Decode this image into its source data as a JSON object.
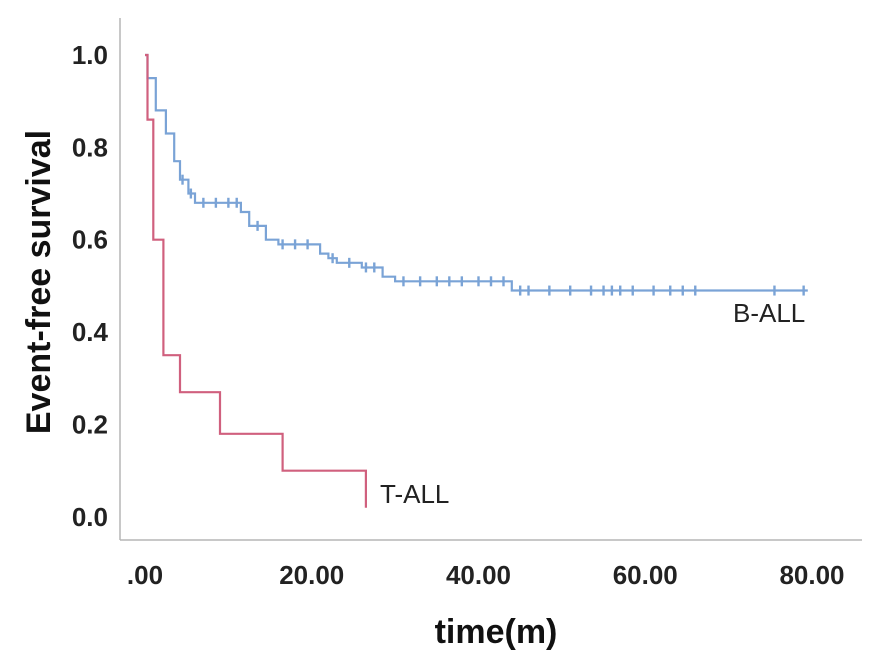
{
  "chart_data": {
    "type": "line",
    "title": "",
    "xlabel": "time(m)",
    "ylabel": "Event-free survival",
    "xlim": [
      -3,
      86
    ],
    "ylim": [
      -0.05,
      1.08
    ],
    "grid": false,
    "x_ticks": [
      {
        "value": 0,
        "label": ".00"
      },
      {
        "value": 20,
        "label": "20.00"
      },
      {
        "value": 40,
        "label": "40.00"
      },
      {
        "value": 60,
        "label": "60.00"
      },
      {
        "value": 80,
        "label": "80.00"
      }
    ],
    "y_ticks": [
      {
        "value": 0.0,
        "label": "0.0"
      },
      {
        "value": 0.2,
        "label": "0.2"
      },
      {
        "value": 0.4,
        "label": "0.4"
      },
      {
        "value": 0.6,
        "label": "0.6"
      },
      {
        "value": 0.8,
        "label": "0.8"
      },
      {
        "value": 1.0,
        "label": "1.0"
      }
    ],
    "series": [
      {
        "name": "B-ALL",
        "color": "#7aa3d6",
        "steps": [
          [
            0,
            1.0
          ],
          [
            0.3,
            0.95
          ],
          [
            1.3,
            0.88
          ],
          [
            2.5,
            0.83
          ],
          [
            3.5,
            0.77
          ],
          [
            4.2,
            0.73
          ],
          [
            5.2,
            0.7
          ],
          [
            6.0,
            0.68
          ],
          [
            11.5,
            0.66
          ],
          [
            12.5,
            0.63
          ],
          [
            14.5,
            0.6
          ],
          [
            16.0,
            0.59
          ],
          [
            21.0,
            0.57
          ],
          [
            22.0,
            0.56
          ],
          [
            23.0,
            0.55
          ],
          [
            26.0,
            0.54
          ],
          [
            28.5,
            0.52
          ],
          [
            30.0,
            0.51
          ],
          [
            44.0,
            0.49
          ],
          [
            79.5,
            0.49
          ]
        ],
        "censored": [
          [
            4.5,
            0.73
          ],
          [
            5.5,
            0.7
          ],
          [
            7.0,
            0.68
          ],
          [
            8.5,
            0.68
          ],
          [
            10.0,
            0.68
          ],
          [
            11.0,
            0.68
          ],
          [
            13.5,
            0.63
          ],
          [
            16.5,
            0.59
          ],
          [
            18.0,
            0.59
          ],
          [
            19.5,
            0.59
          ],
          [
            22.5,
            0.56
          ],
          [
            24.5,
            0.55
          ],
          [
            26.5,
            0.54
          ],
          [
            27.5,
            0.54
          ],
          [
            31.0,
            0.51
          ],
          [
            33.0,
            0.51
          ],
          [
            35.0,
            0.51
          ],
          [
            36.5,
            0.51
          ],
          [
            38.0,
            0.51
          ],
          [
            40.0,
            0.51
          ],
          [
            41.5,
            0.51
          ],
          [
            43.0,
            0.51
          ],
          [
            45.0,
            0.49
          ],
          [
            46.0,
            0.49
          ],
          [
            48.5,
            0.49
          ],
          [
            51.0,
            0.49
          ],
          [
            53.5,
            0.49
          ],
          [
            55.0,
            0.49
          ],
          [
            56.0,
            0.49
          ],
          [
            57.0,
            0.49
          ],
          [
            58.5,
            0.49
          ],
          [
            61.0,
            0.49
          ],
          [
            63.0,
            0.49
          ],
          [
            64.5,
            0.49
          ],
          [
            66.0,
            0.49
          ],
          [
            75.5,
            0.49
          ],
          [
            79.0,
            0.49
          ]
        ]
      },
      {
        "name": "T-ALL",
        "color": "#d0607e",
        "steps": [
          [
            0,
            1.0
          ],
          [
            0.3,
            0.86
          ],
          [
            1.0,
            0.6
          ],
          [
            2.2,
            0.35
          ],
          [
            4.2,
            0.27
          ],
          [
            9.0,
            0.18
          ],
          [
            16.5,
            0.1
          ],
          [
            26.5,
            0.02
          ]
        ],
        "censored": []
      }
    ]
  }
}
